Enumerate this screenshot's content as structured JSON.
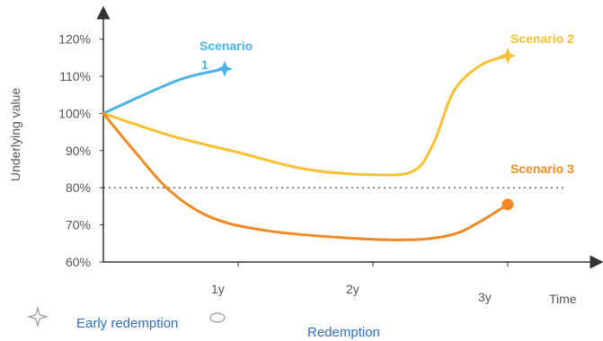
{
  "chart_data": {
    "type": "line",
    "xlabel": "Time",
    "ylabel": "Underlying value",
    "x_ticks": [
      {
        "label": "1y",
        "value": 1
      },
      {
        "label": "2y",
        "value": 2
      },
      {
        "label": "3y",
        "value": 3
      }
    ],
    "y_ticks": [
      "60%",
      "70%",
      "80%",
      "90%",
      "100%",
      "110%",
      "120%"
    ],
    "y_tick_values": [
      60,
      70,
      80,
      90,
      100,
      110,
      120
    ],
    "xlim": [
      0,
      3.1
    ],
    "ylim": [
      60,
      125
    ],
    "reference_line": {
      "value": 80,
      "style": "dotted"
    },
    "series": [
      {
        "name": "Scenario 1",
        "color": "#4db3e6",
        "end_marker": "star",
        "points": [
          [
            0,
            100
          ],
          [
            0.3,
            105
          ],
          [
            0.6,
            109.5
          ],
          [
            0.9,
            112
          ]
        ]
      },
      {
        "name": "Scenario 2",
        "color": "#f8c135",
        "end_marker": "star",
        "points": [
          [
            0,
            100
          ],
          [
            0.5,
            94
          ],
          [
            1.0,
            89.5
          ],
          [
            1.5,
            85
          ],
          [
            2.0,
            83.5
          ],
          [
            2.3,
            84.5
          ],
          [
            2.45,
            92
          ],
          [
            2.6,
            106
          ],
          [
            2.8,
            113
          ],
          [
            3.0,
            115.5
          ]
        ]
      },
      {
        "name": "Scenario 3",
        "color": "#f08a24",
        "end_marker": "circle",
        "points": [
          [
            0,
            100
          ],
          [
            0.25,
            89
          ],
          [
            0.5,
            79
          ],
          [
            0.8,
            72
          ],
          [
            1.2,
            68.5
          ],
          [
            1.8,
            66.5
          ],
          [
            2.3,
            66
          ],
          [
            2.6,
            67.5
          ],
          [
            2.8,
            71
          ],
          [
            3.0,
            75.5
          ]
        ]
      }
    ]
  },
  "legend": {
    "items": [
      {
        "label": "Early redemption",
        "icon": "star-icon"
      },
      {
        "label": "Redemption",
        "icon": "circle-icon"
      }
    ]
  }
}
